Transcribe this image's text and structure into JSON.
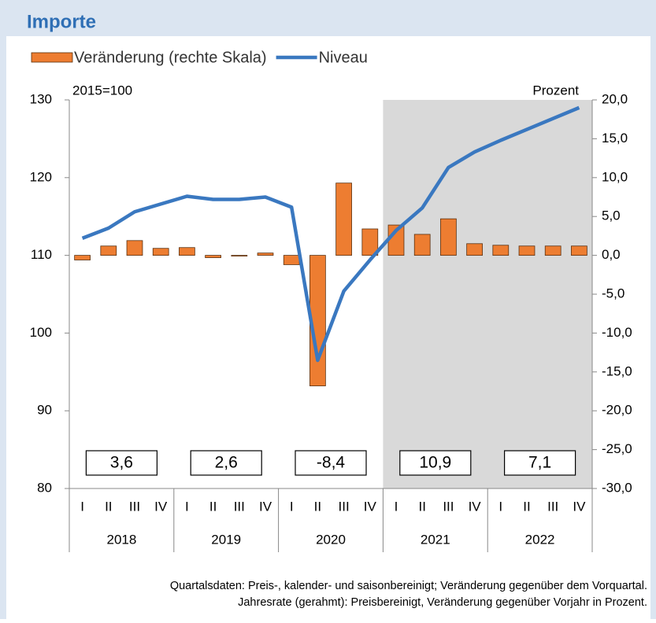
{
  "chart_data": {
    "type": "bar_line",
    "title": "Importe",
    "ylabel": "2015=100",
    "y2label": "Prozent",
    "categories": [
      "I",
      "II",
      "III",
      "IV",
      "I",
      "II",
      "III",
      "IV",
      "I",
      "II",
      "III",
      "IV",
      "I",
      "II",
      "III",
      "IV",
      "I",
      "II",
      "III",
      "IV"
    ],
    "years": [
      "2018",
      "2019",
      "2020",
      "2021",
      "2022"
    ],
    "ylim": [
      80,
      130
    ],
    "yticks": [
      80,
      90,
      100,
      110,
      120,
      130
    ],
    "y2lim": [
      -30,
      20
    ],
    "y2ticks": [
      {
        "value": -30,
        "label": "-30,0"
      },
      {
        "value": -25,
        "label": "-25,0"
      },
      {
        "value": -20,
        "label": "-20,0"
      },
      {
        "value": -15,
        "label": "-15,0"
      },
      {
        "value": -10,
        "label": "-10,0"
      },
      {
        "value": -5,
        "label": "-5,0"
      },
      {
        "value": 0,
        "label": "0,0"
      },
      {
        "value": 5,
        "label": "5,0"
      },
      {
        "value": 10,
        "label": "10,0"
      },
      {
        "value": 15,
        "label": "15,0"
      },
      {
        "value": 20,
        "label": "20,0"
      }
    ],
    "series": [
      {
        "name": "Veränderung (rechte Skala)",
        "type": "bar",
        "axis": "y2",
        "color": "#ed7d31",
        "values": [
          -0.6,
          1.2,
          1.9,
          0.9,
          1.0,
          -0.3,
          -0.1,
          0.3,
          -1.2,
          -16.8,
          9.3,
          3.4,
          3.9,
          2.7,
          4.7,
          1.5,
          1.3,
          1.2,
          1.2,
          1.2
        ]
      },
      {
        "name": "Niveau",
        "type": "line",
        "color": "#3a78c0",
        "values": [
          112.2,
          113.5,
          115.6,
          116.6,
          117.6,
          117.2,
          117.2,
          117.5,
          116.2,
          96.5,
          105.4,
          109.4,
          113.2,
          116.1,
          121.3,
          123.3,
          124.8,
          126.2,
          127.6,
          129.0
        ]
      }
    ],
    "annual_rates": {
      "values": [
        3.6,
        2.6,
        -8.4,
        10.9,
        7.1
      ],
      "value_labels": [
        "3,6",
        "2,6",
        "-8,4",
        "10,9",
        "7,1"
      ]
    },
    "footnote": [
      "Quartalsdaten: Preis-, kalender- und saisonbereinigt; Veränderung gegenüber dem Vorquartal.",
      "Jahresrate (gerahmt): Preisbereinigt, Veränderung gegenüber Vorjahr in Prozent."
    ]
  }
}
